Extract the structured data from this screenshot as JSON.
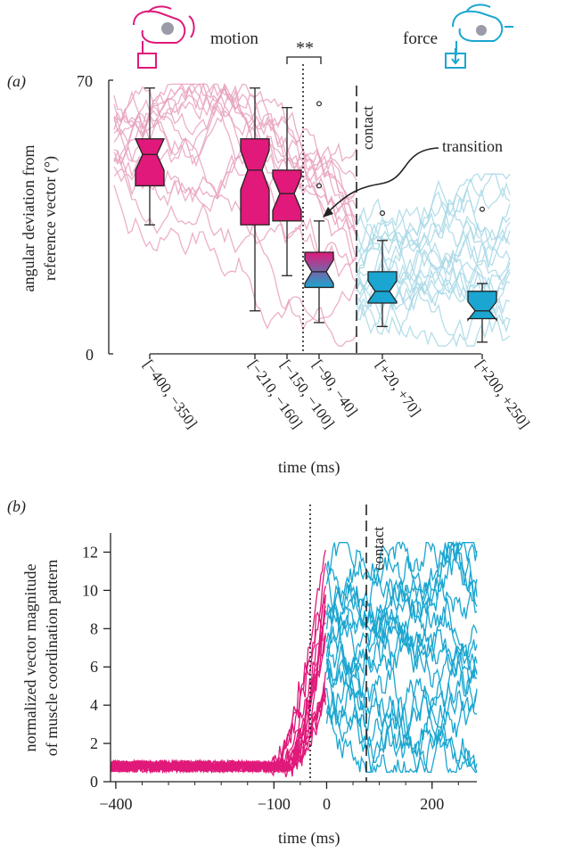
{
  "colors": {
    "motion": "#e0197a",
    "force": "#1aa6d0",
    "motion_light": "#e8a2bf",
    "force_light": "#a8d8e6",
    "axis": "#222222"
  },
  "icons": {
    "motion_icon": "hand-pressing-button-icon",
    "force_icon": "hand-pressing-down-icon"
  },
  "header": {
    "motion_label": "motion",
    "force_label": "force",
    "significance": "**",
    "transition_label": "transition"
  },
  "chart_data": [
    {
      "panel": "(a)",
      "type": "box",
      "ylabel_line1": "angular deviation from",
      "ylabel_line2": "reference vector (°)",
      "xlabel": "time (ms)",
      "ylim": [
        0,
        70
      ],
      "yticks": [
        "0",
        "70"
      ],
      "contact_label": "contact",
      "categories": [
        "[−400, −350]",
        "[−210, −160]",
        "[−150, −100]",
        "[−90, −40]",
        "[+20, +70]",
        "[+200, +250]"
      ],
      "boxes": [
        {
          "min": 33,
          "q1": 43,
          "median": 51,
          "q3": 55,
          "max": 68,
          "outliers": [],
          "phase": "motion"
        },
        {
          "min": 11,
          "q1": 33,
          "median": 47,
          "q3": 55,
          "max": 68,
          "outliers": [],
          "phase": "motion"
        },
        {
          "min": 20,
          "q1": 34,
          "median": 41,
          "q3": 47,
          "max": 63,
          "outliers": [],
          "phase": "motion"
        },
        {
          "min": 8,
          "q1": 17,
          "median": 21,
          "q3": 26,
          "max": 34,
          "outliers": [
            43,
            64
          ],
          "phase": "transition"
        },
        {
          "min": 7,
          "q1": 13,
          "median": 16,
          "q3": 21,
          "max": 29,
          "outliers": [
            36
          ],
          "phase": "force"
        },
        {
          "min": 3,
          "q1": 9,
          "median": 11,
          "q3": 16,
          "max": 18,
          "outliers": [
            37
          ],
          "phase": "force"
        }
      ]
    },
    {
      "panel": "(b)",
      "type": "line",
      "ylabel_line1": "normalized vector magnitude",
      "ylabel_line2": "of muscle coordination pattern",
      "xlabel": "time (ms)",
      "xlim": [
        -410,
        285
      ],
      "ylim": [
        0,
        13
      ],
      "xticks": [
        "−400",
        "−100",
        "0",
        "200"
      ],
      "yticks": [
        "0",
        "2",
        "4",
        "6",
        "8",
        "10",
        "12"
      ],
      "contact_label": "contact",
      "markers": {
        "transition_time": -100,
        "contact_time": 0
      },
      "series": [
        {
          "phase": "motion",
          "x_range": [
            -410,
            0
          ],
          "baseline": 0.8,
          "peak": 12.5
        },
        {
          "phase": "force",
          "x_range": [
            0,
            285
          ],
          "y_range": [
            0.5,
            12.5
          ]
        }
      ]
    }
  ]
}
